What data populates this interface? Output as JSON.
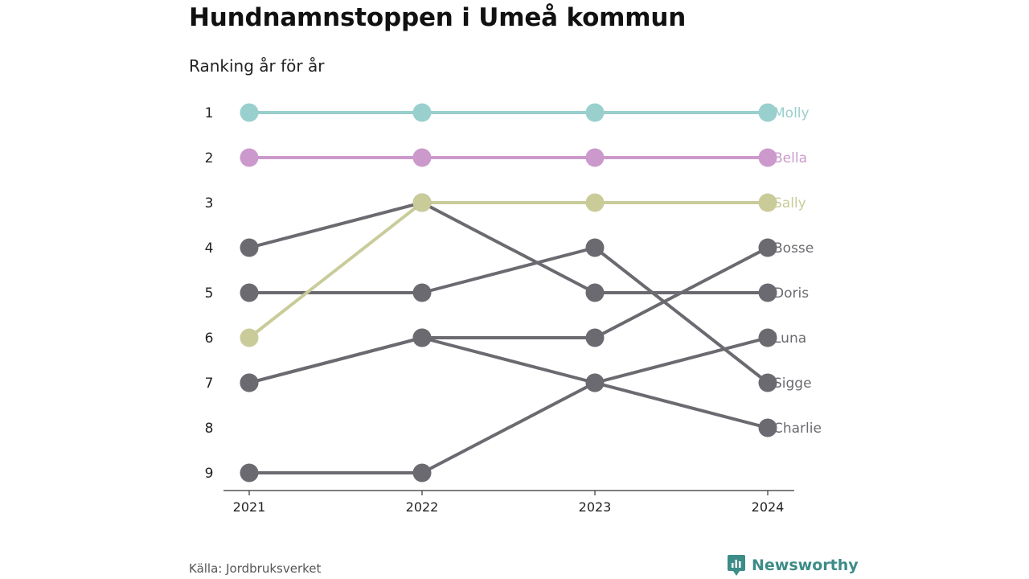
{
  "header": {
    "title": "Hundnamnstoppen i Umeå kommun",
    "subtitle": "Ranking år för år"
  },
  "footer": {
    "source": "Källa: Jordbruksverket",
    "brand": "Newsworthy",
    "brand_color": "#3d8c88"
  },
  "chart_data": {
    "type": "line",
    "subtype": "bump",
    "title": "Hundnamnstoppen i Umeå kommun",
    "subtitle": "Ranking år för år",
    "x": [
      "2021",
      "2022",
      "2023",
      "2024"
    ],
    "y_ticks": [
      1,
      2,
      3,
      4,
      5,
      6,
      7,
      8,
      9
    ],
    "y_inverted": true,
    "grid": false,
    "series": [
      {
        "name": "Molly",
        "ranks": [
          1,
          1,
          1,
          1
        ],
        "color": "#99cfcd",
        "highlight": true
      },
      {
        "name": "Bella",
        "ranks": [
          2,
          2,
          2,
          2
        ],
        "color": "#cc99cc",
        "highlight": true
      },
      {
        "name": "Sally",
        "ranks": [
          6,
          3,
          3,
          3
        ],
        "color": "#c9cc99",
        "highlight": true
      },
      {
        "name": "Bosse",
        "ranks": [
          7,
          6,
          6,
          4
        ],
        "color": "#6b6a70",
        "highlight": false
      },
      {
        "name": "Doris",
        "ranks": [
          4,
          3,
          5,
          5
        ],
        "color": "#6b6a70",
        "highlight": false
      },
      {
        "name": "Luna",
        "ranks": [
          9,
          9,
          7,
          6
        ],
        "color": "#6b6a70",
        "highlight": false
      },
      {
        "name": "Sigge",
        "ranks": [
          5,
          5,
          4,
          7
        ],
        "color": "#6b6a70",
        "highlight": false
      },
      {
        "name": "Charlie",
        "ranks": [
          7,
          6,
          7,
          8
        ],
        "color": "#6b6a70",
        "highlight": false
      }
    ]
  }
}
